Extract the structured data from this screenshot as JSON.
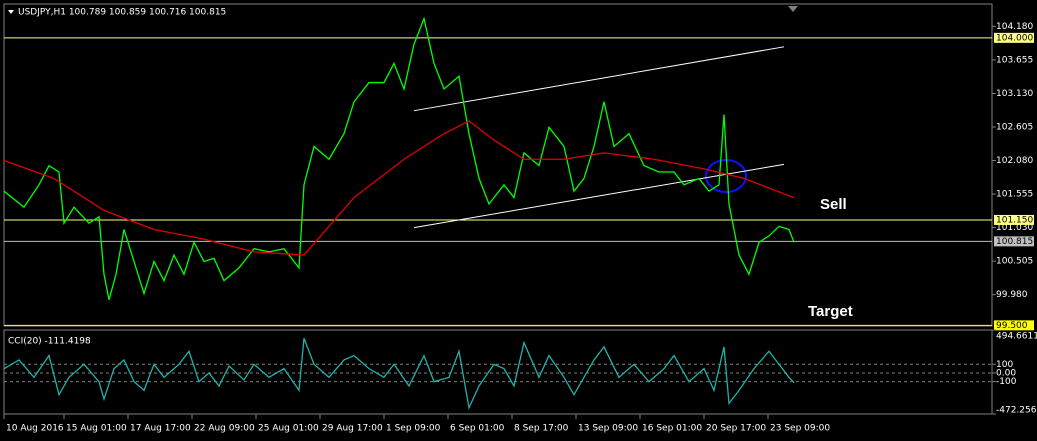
{
  "chart_data": [
    {
      "type": "line",
      "title": "USDJPY,H1 100.789 100.859 100.716 100.815",
      "xlim": [
        0,
        988
      ],
      "xticks": [
        {
          "value": 0,
          "label": "10 Aug 2016"
        },
        {
          "value": 60,
          "label": "15 Aug 01:00"
        },
        {
          "value": 124,
          "label": "17 Aug 17:00"
        },
        {
          "value": 188,
          "label": "22 Aug 09:00"
        },
        {
          "value": 252,
          "label": "25 Aug 01:00"
        },
        {
          "value": 316,
          "label": "29 Aug 17:00"
        },
        {
          "value": 380,
          "label": "1 Sep 09:00"
        },
        {
          "value": 444,
          "label": "6 Sep 01:00"
        },
        {
          "value": 508,
          "label": "8 Sep 17:00"
        },
        {
          "value": 572,
          "label": "13 Sep 09:00"
        },
        {
          "value": 636,
          "label": "16 Sep 01:00"
        },
        {
          "value": 700,
          "label": "20 Sep 17:00"
        },
        {
          "value": 764,
          "label": "23 Sep 09:00"
        }
      ],
      "ylim": [
        99.49,
        104.53
      ],
      "yticks": [
        {
          "value": 104.18,
          "label": "104.180"
        },
        {
          "value": 103.655,
          "label": "103.655"
        },
        {
          "value": 103.13,
          "label": "103.130"
        },
        {
          "value": 102.605,
          "label": "102.605"
        },
        {
          "value": 102.08,
          "label": "102.080"
        },
        {
          "value": 101.555,
          "label": "101.555"
        },
        {
          "value": 101.03,
          "label": "101.030"
        },
        {
          "value": 100.505,
          "label": "100.505"
        },
        {
          "value": 99.98,
          "label": "99.980"
        }
      ],
      "series": [
        {
          "color": "#00ff00",
          "x": [
            0,
            20,
            35,
            45,
            55,
            60,
            70,
            85,
            95,
            100,
            105,
            112,
            120,
            130,
            140,
            150,
            160,
            170,
            180,
            190,
            200,
            210,
            220,
            235,
            250,
            265,
            280,
            295,
            300,
            310,
            325,
            340,
            350,
            365,
            380,
            390,
            400,
            410,
            420,
            430,
            440,
            455,
            465,
            475,
            485,
            500,
            510,
            520,
            535,
            545,
            560,
            570,
            580,
            590,
            600,
            610,
            625,
            640,
            655,
            670,
            680,
            695,
            705,
            715,
            720,
            725,
            735,
            745,
            755,
            765,
            775,
            785,
            790
          ],
          "values": [
            101.6,
            101.35,
            101.7,
            102.0,
            101.9,
            101.1,
            101.35,
            101.1,
            101.2,
            100.3,
            99.9,
            100.3,
            101.0,
            100.5,
            100.0,
            100.5,
            100.2,
            100.6,
            100.3,
            100.8,
            100.5,
            100.55,
            100.2,
            100.4,
            100.7,
            100.65,
            100.7,
            100.4,
            101.7,
            102.3,
            102.1,
            102.5,
            103.0,
            103.3,
            103.3,
            103.6,
            103.2,
            103.9,
            104.3,
            103.6,
            103.2,
            103.4,
            102.5,
            101.8,
            101.4,
            101.7,
            101.5,
            102.2,
            102.0,
            102.6,
            102.3,
            101.6,
            101.8,
            102.3,
            103.0,
            102.3,
            102.5,
            102.0,
            101.9,
            101.9,
            101.7,
            101.8,
            101.6,
            101.7,
            102.8,
            101.4,
            100.6,
            100.3,
            100.8,
            100.9,
            101.05,
            101.0,
            100.8
          ]
        },
        {
          "color": "#e00000",
          "x": [
            0,
            50,
            100,
            150,
            200,
            250,
            300,
            350,
            400,
            440,
            465,
            490,
            520,
            560,
            600,
            650,
            700,
            740,
            790
          ],
          "values": [
            102.08,
            101.8,
            101.3,
            101.0,
            100.85,
            100.65,
            100.6,
            101.5,
            102.1,
            102.5,
            102.7,
            102.4,
            102.1,
            102.1,
            102.2,
            102.1,
            101.95,
            101.8,
            101.5
          ]
        }
      ],
      "trendlines": [
        {
          "color": "#ffffff",
          "x": [
            410,
            780
          ],
          "values": [
            102.86,
            103.86
          ]
        },
        {
          "color": "#ffffff",
          "x": [
            410,
            780
          ],
          "values": [
            101.03,
            102.02
          ]
        }
      ],
      "levels": [
        {
          "value": 104.0,
          "label": "104.000",
          "color": "#ffff80"
        },
        {
          "value": 101.15,
          "label": "101.150",
          "color": "#ffff80"
        },
        {
          "value": 100.815,
          "label": "100.815",
          "color": "#c0c0c0"
        },
        {
          "value": 99.5,
          "label": "99.500",
          "color": "#ffff00"
        }
      ],
      "annotations": [
        "Sell",
        "Target"
      ]
    },
    {
      "type": "line",
      "title": "CCI(20) -111.4198",
      "xlim": [
        0,
        988
      ],
      "ylim": [
        -472.2561,
        494.6611
      ],
      "yticks": [
        494.6611,
        100,
        {
          "value": 0,
          "label": "0.00"
        },
        -100,
        -472.2561
      ],
      "grid": true,
      "series": [
        {
          "color": "#20b2aa",
          "x": [
            0,
            15,
            30,
            45,
            55,
            65,
            80,
            95,
            100,
            110,
            120,
            130,
            140,
            150,
            160,
            175,
            185,
            195,
            205,
            215,
            225,
            240,
            250,
            265,
            280,
            295,
            300,
            310,
            325,
            340,
            350,
            365,
            380,
            390,
            405,
            420,
            430,
            445,
            455,
            465,
            475,
            490,
            500,
            510,
            520,
            535,
            545,
            560,
            570,
            590,
            600,
            615,
            630,
            645,
            660,
            670,
            685,
            700,
            710,
            720,
            725,
            735,
            750,
            765,
            775,
            785,
            790
          ],
          "values": [
            50,
            150,
            -50,
            200,
            -250,
            -50,
            100,
            -100,
            -300,
            50,
            150,
            -100,
            -200,
            100,
            -50,
            100,
            250,
            -100,
            0,
            -150,
            80,
            -80,
            100,
            -50,
            50,
            -200,
            400,
            100,
            -50,
            150,
            200,
            50,
            -50,
            100,
            -150,
            200,
            -100,
            -50,
            250,
            -400,
            -150,
            100,
            50,
            -150,
            350,
            -50,
            200,
            -50,
            -250,
            150,
            300,
            -50,
            100,
            -100,
            50,
            200,
            -100,
            50,
            -200,
            300,
            -350,
            -200,
            50,
            250,
            100,
            -50,
            -111.4198
          ]
        }
      ]
    }
  ]
}
